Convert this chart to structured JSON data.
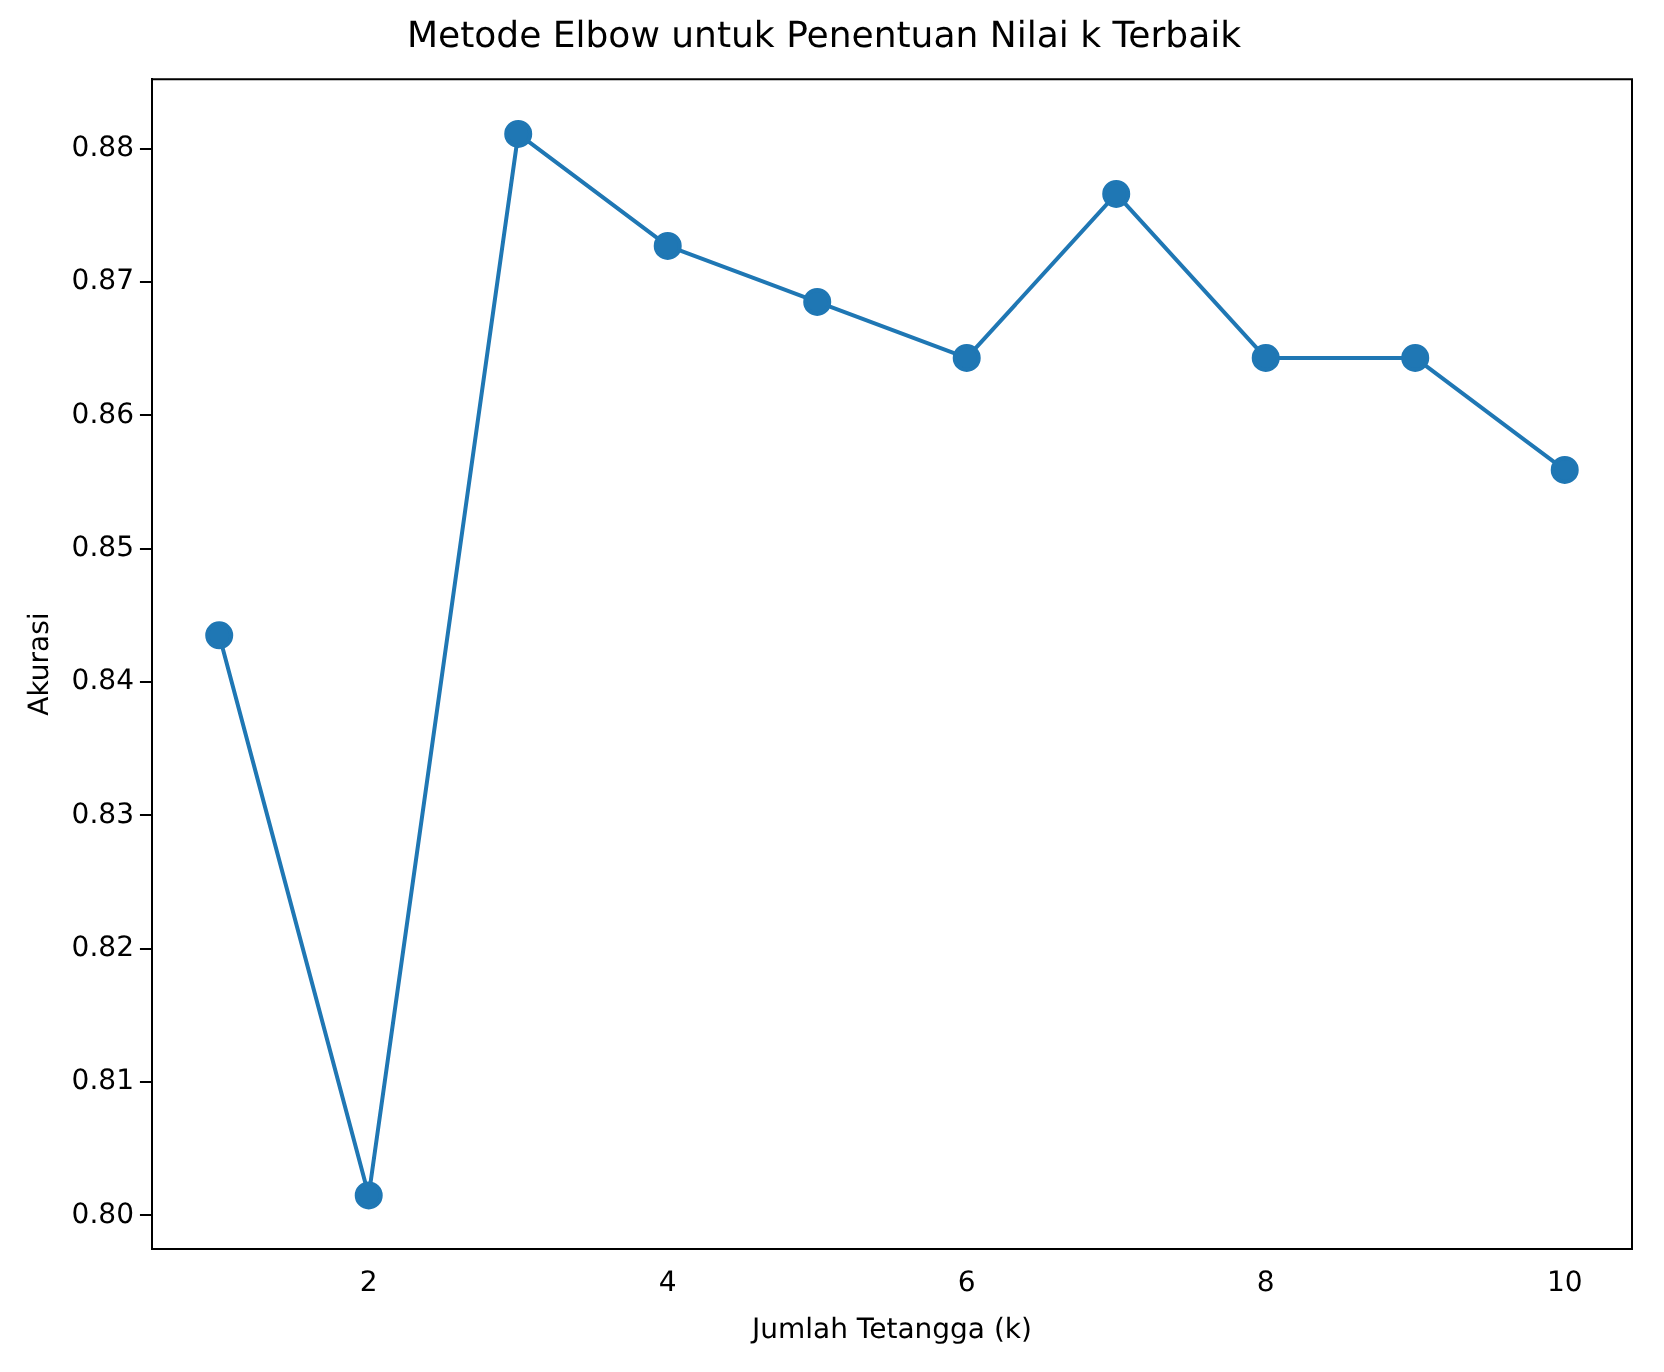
{
  "chart_data": {
    "type": "line",
    "title": "Metode Elbow untuk Penentuan Nilai k Terbaik",
    "xlabel": "Jumlah Tetangga (k)",
    "ylabel": "Akurasi",
    "x": [
      1,
      2,
      3,
      4,
      5,
      6,
      7,
      8,
      9,
      10
    ],
    "series": [
      {
        "color": "#1f77b4",
        "values": [
          0.8435,
          0.8015,
          0.8811,
          0.8727,
          0.8685,
          0.8643,
          0.8766,
          0.8643,
          0.8643,
          0.8559
        ]
      }
    ],
    "xlim": [
      0.55,
      10.45
    ],
    "xticks": [
      2,
      4,
      6,
      8,
      10
    ],
    "ylim": [
      0.7975,
      0.8852
    ],
    "yticks": [
      {
        "value": 0.8,
        "label": "0.80"
      },
      {
        "value": 0.81,
        "label": "0.81"
      },
      {
        "value": 0.82,
        "label": "0.82"
      },
      {
        "value": 0.83,
        "label": "0.83"
      },
      {
        "value": 0.84,
        "label": "0.84"
      },
      {
        "value": 0.85,
        "label": "0.85"
      },
      {
        "value": 0.86,
        "label": "0.86"
      },
      {
        "value": 0.87,
        "label": "0.87"
      },
      {
        "value": 0.88,
        "label": "0.88"
      }
    ],
    "grid": false,
    "legend": false,
    "marker": "circle",
    "line_style": "solid"
  }
}
